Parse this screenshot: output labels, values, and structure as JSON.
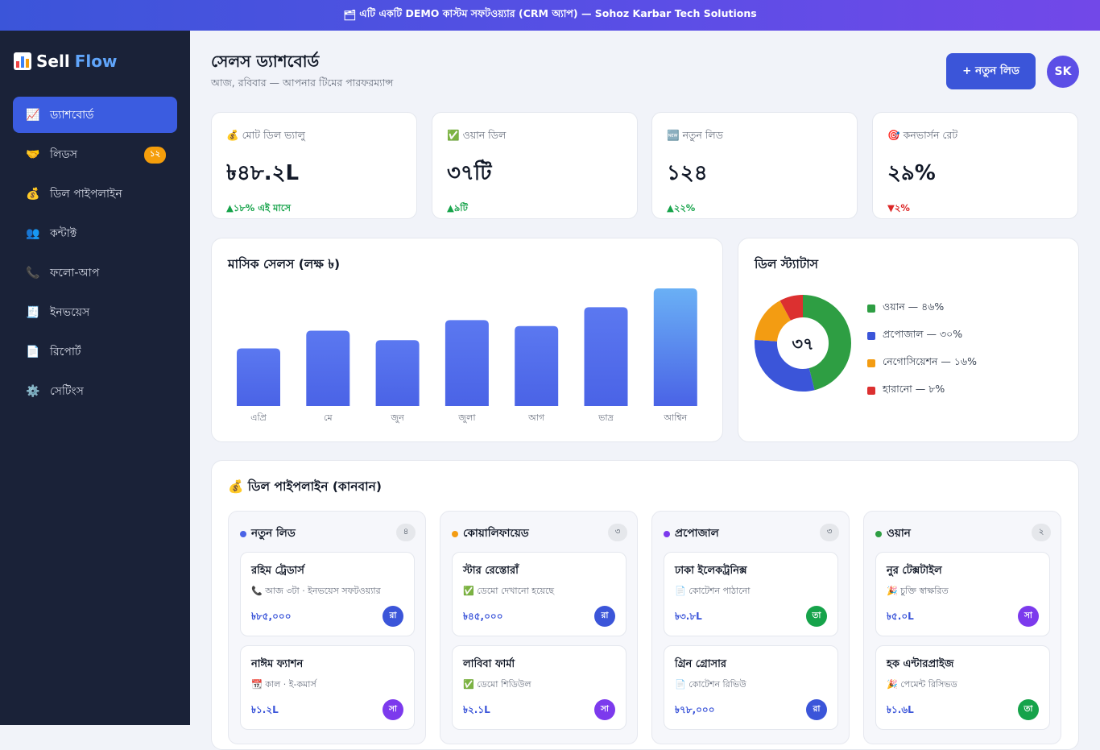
{
  "banner": {
    "icon": "🗂",
    "text": "এটি একটি DEMO কাস্টম সফটওয়্যার (CRM অ্যাপ) — Sohoz Karbar Tech Solutions"
  },
  "brand": {
    "part1": "Sell",
    "part2": "Flow",
    "icon": "bar-chart-icon"
  },
  "sidebar": {
    "items": [
      {
        "icon": "📈",
        "label": "ড্যাশবোর্ড",
        "active": true
      },
      {
        "icon": "🤝",
        "label": "লিডস",
        "badge": "১২"
      },
      {
        "icon": "💰",
        "label": "ডিল পাইপলাইন"
      },
      {
        "icon": "👥",
        "label": "কন্টাক্ট"
      },
      {
        "icon": "📞",
        "label": "ফলো-আপ"
      },
      {
        "icon": "🧾",
        "label": "ইনভয়েস"
      },
      {
        "icon": "📄",
        "label": "রিপোর্ট"
      },
      {
        "icon": "⚙️",
        "label": "সেটিংস"
      }
    ]
  },
  "header": {
    "title": "সেলস ড্যাশবোর্ড",
    "subtitle": "আজ, রবিবার — আপনার টিমের পারফরম্যান্স",
    "new_lead_label": "+ নতুন লিড",
    "user_initials": "SK"
  },
  "stats": [
    {
      "icon": "💰",
      "label": "মোট ডিল ভ্যালু",
      "value": "৳৪৮.২L",
      "delta": "▲১৮% এই মাসে",
      "trend": "up"
    },
    {
      "icon": "✅",
      "label": "ওয়ান ডিল",
      "value": "৩৭টি",
      "delta": "▲৯টি",
      "trend": "up"
    },
    {
      "icon": "🆕",
      "label": "নতুন লিড",
      "value": "১২৪",
      "delta": "▲২২%",
      "trend": "up"
    },
    {
      "icon": "🎯",
      "label": "কনভার্সন রেট",
      "value": "২৯%",
      "delta": "▼২%",
      "trend": "down"
    }
  ],
  "chart_data": [
    {
      "type": "bar",
      "title": "মাসিক সেলস (লক্ষ ৳)",
      "categories": [
        "এপ্রি",
        "মে",
        "জুন",
        "জুলা",
        "আগ",
        "ভাদ্র",
        "আশ্বিন"
      ],
      "values": [
        4.9,
        6.4,
        5.6,
        7.3,
        6.8,
        8.4,
        10.0
      ],
      "ylim": [
        0,
        10
      ],
      "grid": false,
      "colors": {
        "bar": "#4a63e6",
        "bar_last": "#6ab0f5"
      }
    },
    {
      "type": "pie",
      "title": "ডিল স্ট্যাটাস",
      "center_label": "৩৭",
      "series": [
        {
          "name": "ওয়ান — ৪৬%",
          "value": 46,
          "color": "#2e9e43"
        },
        {
          "name": "প্রপোজাল — ৩০%",
          "value": 30,
          "color": "#3b55d9"
        },
        {
          "name": "নেগোসিয়েশন — ১৬%",
          "value": 16,
          "color": "#f39c12"
        },
        {
          "name": "হারানো — ৮%",
          "value": 8,
          "color": "#dc3030"
        }
      ]
    }
  ],
  "kanban": {
    "title": "💰 ডিল পাইপলাইন (কানবান)",
    "columns": [
      {
        "title": "নতুন লিড",
        "count": "৪",
        "dot": "#4a63e6",
        "deals": [
          {
            "name": "রহিম ট্রেডার্স",
            "note": "📞 আজ ৩টা · ইনভয়েস সফটওয়্যার",
            "amount": "৳৮৫,০০০",
            "owner": "রা",
            "owner_color": "#3b55d9"
          },
          {
            "name": "নাঈম ফ্যাশন",
            "note": "📆 কাল · ই-কমার্স",
            "amount": "৳১.২L",
            "owner": "সা",
            "owner_color": "#7c3aed"
          }
        ]
      },
      {
        "title": "কোয়ালিফায়েড",
        "count": "৩",
        "dot": "#f39c12",
        "deals": [
          {
            "name": "স্টার রেস্তোরাঁ",
            "note": "✅ ডেমো দেখানো হয়েছে",
            "amount": "৳৪৫,০০০",
            "owner": "রা",
            "owner_color": "#3b55d9"
          },
          {
            "name": "লাবিবা ফার্মা",
            "note": "✅ ডেমো শিডিউল",
            "amount": "৳২.১L",
            "owner": "সা",
            "owner_color": "#7c3aed"
          }
        ]
      },
      {
        "title": "প্রপোজাল",
        "count": "৩",
        "dot": "#7c3aed",
        "deals": [
          {
            "name": "ঢাকা ইলেকট্রনিক্স",
            "note": "📄 কোটেশন পাঠানো",
            "amount": "৳৩.৮L",
            "owner": "তা",
            "owner_color": "#16a34a"
          },
          {
            "name": "গ্রিন গ্রোসার",
            "note": "📄 কোটেশন রিভিউ",
            "amount": "৳৭৮,০০০",
            "owner": "রা",
            "owner_color": "#3b55d9"
          }
        ]
      },
      {
        "title": "ওয়ান",
        "count": "২",
        "dot": "#2e9e43",
        "deals": [
          {
            "name": "নুর টেক্সটাইল",
            "note": "🎉 চুক্তি স্বাক্ষরিত",
            "amount": "৳৫.০L",
            "owner": "সা",
            "owner_color": "#7c3aed"
          },
          {
            "name": "হক এন্টারপ্রাইজ",
            "note": "🎉 পেমেন্ট রিসিভড",
            "amount": "৳১.৬L",
            "owner": "তা",
            "owner_color": "#16a34a"
          }
        ]
      }
    ]
  }
}
